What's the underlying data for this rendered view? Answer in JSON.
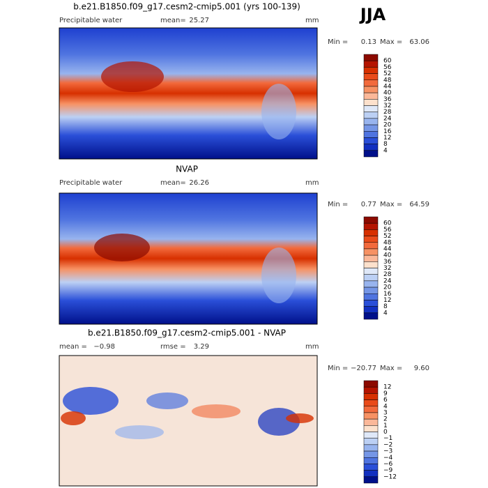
{
  "header": {
    "season": "JJA"
  },
  "panels": [
    {
      "title": "b.e21.B1850.f09_g17.cesm2-cmip5.001 (yrs 100-139)",
      "label": "Precipitable water",
      "mean_label": "mean=",
      "mean": "25.27",
      "units": "mm",
      "min_label": "Min =",
      "min": "0.13",
      "max_label": "Max =",
      "max": "63.06",
      "colorbar": {
        "labels": [
          "60",
          "56",
          "52",
          "48",
          "44",
          "40",
          "36",
          "32",
          "28",
          "24",
          "20",
          "16",
          "12",
          "8",
          "4"
        ],
        "colors": [
          "#8c0a00",
          "#b41400",
          "#d73000",
          "#e94b1a",
          "#f26a3c",
          "#f79264",
          "#fbb899",
          "#fde1cc",
          "#dfe8f8",
          "#bcd0f4",
          "#98b4ee",
          "#7596e6",
          "#4f74e0",
          "#2a4fd8",
          "#1230c0",
          "#00108a"
        ]
      }
    },
    {
      "title": "NVAP",
      "label": "Precipitable water",
      "mean_label": "mean=",
      "mean": "26.26",
      "units": "mm",
      "min_label": "Min =",
      "min": "0.77",
      "max_label": "Max =",
      "max": "64.59",
      "colorbar": {
        "labels": [
          "60",
          "56",
          "52",
          "48",
          "44",
          "40",
          "36",
          "32",
          "28",
          "24",
          "20",
          "16",
          "12",
          "8",
          "4"
        ],
        "colors": [
          "#8c0a00",
          "#b41400",
          "#d73000",
          "#e94b1a",
          "#f26a3c",
          "#f79264",
          "#fbb899",
          "#fde1cc",
          "#dfe8f8",
          "#bcd0f4",
          "#98b4ee",
          "#7596e6",
          "#4f74e0",
          "#2a4fd8",
          "#1230c0",
          "#00108a"
        ]
      }
    },
    {
      "title": "b.e21.B1850.f09_g17.cesm2-cmip5.001 - NVAP",
      "mean_label": "mean =",
      "mean": "−0.98",
      "rmse_label": "rmse =",
      "rmse": "3.29",
      "units": "mm",
      "min_label": "Min =",
      "min": "−20.77",
      "max_label": "Max =",
      "max": "9.60",
      "colorbar": {
        "labels": [
          "12",
          "9",
          "6",
          "4",
          "3",
          "2",
          "1",
          "0",
          "−1",
          "−2",
          "−3",
          "−4",
          "−6",
          "−9",
          "−12"
        ],
        "colors": [
          "#8c0a00",
          "#b41400",
          "#d73000",
          "#e94b1a",
          "#f26a3c",
          "#f79264",
          "#fbb899",
          "#fde1cc",
          "#dfe8f8",
          "#bcd0f4",
          "#98b4ee",
          "#7596e6",
          "#4f74e0",
          "#2a4fd8",
          "#1230c0",
          "#00108a"
        ]
      }
    }
  ]
}
